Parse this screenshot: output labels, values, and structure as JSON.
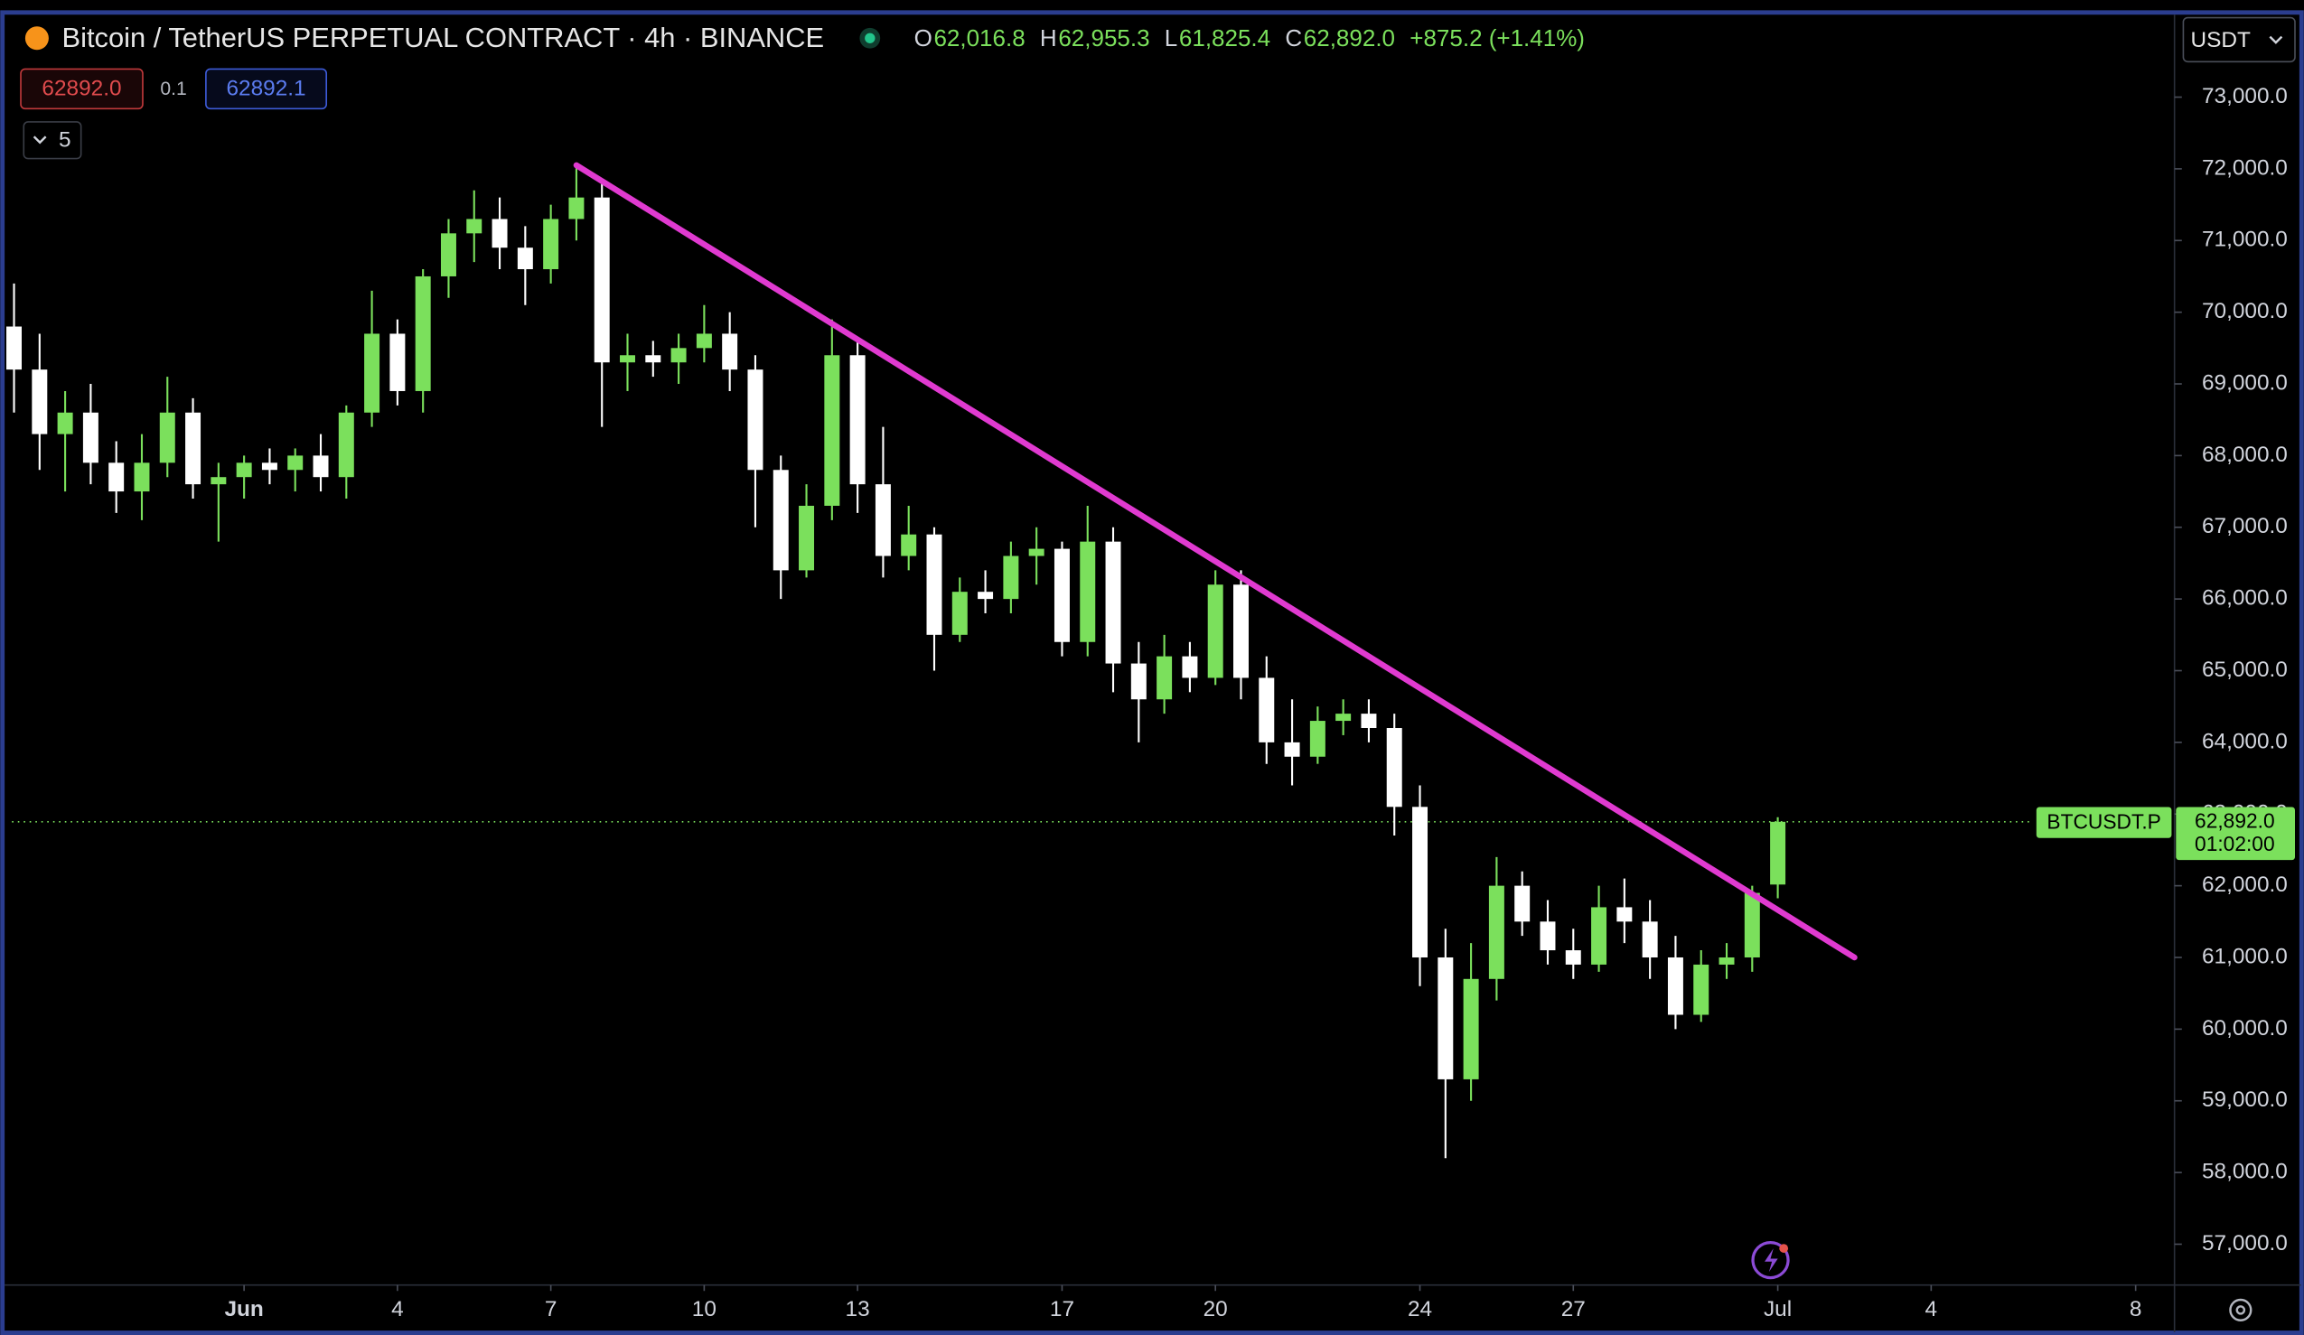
{
  "chart_data": {
    "type": "candlestick",
    "title": "Bitcoin / TetherUS PERPETUAL CONTRACT · 4h · BINANCE",
    "ohlc_legend": [
      {
        "key": "O",
        "value": "62,016.8"
      },
      {
        "key": "H",
        "value": "62,955.3"
      },
      {
        "key": "L",
        "value": "61,825.4"
      },
      {
        "key": "C",
        "value": "62,892.0"
      }
    ],
    "change": "+875.2 (+1.41%)",
    "toolbar": {
      "sell_price": "62892.0",
      "spread": "0.1",
      "buy_price": "62892.1",
      "indicator_count": 5,
      "currency": "USDT"
    },
    "up_color": "#7be05c",
    "down_color": "#ffffff",
    "x": [
      -3.5,
      -3,
      -2.5,
      -2,
      -1.5,
      -1,
      -0.5,
      0,
      0.5,
      1,
      1.5,
      2,
      2.5,
      3,
      3.5,
      4,
      4.5,
      5,
      5.5,
      6,
      6.5,
      7,
      7.5,
      8,
      8.5,
      9,
      9.5,
      10,
      10.5,
      11,
      11.5,
      12,
      12.5,
      13,
      13.5,
      14,
      14.5,
      15,
      15.5,
      16,
      16.5,
      17,
      17.5,
      18,
      18.5,
      19,
      19.5,
      20,
      20.5,
      21,
      21.5,
      22,
      22.5,
      23,
      23.5,
      24,
      24.5,
      25,
      25.5,
      26,
      26.5,
      27,
      27.5,
      28,
      28.5,
      29,
      29.5,
      30,
      30.5,
      31
    ],
    "open": [
      69800,
      69200,
      68300,
      68600,
      67900,
      67500,
      67900,
      68600,
      67600,
      67700,
      67900,
      67800,
      68000,
      67700,
      68600,
      69700,
      68900,
      70500,
      71100,
      71300,
      70900,
      70600,
      71300,
      71600,
      69300,
      69400,
      69300,
      69500,
      69700,
      69200,
      67800,
      66400,
      67300,
      69400,
      67600,
      66600,
      66900,
      65500,
      66100,
      66000,
      66600,
      66700,
      65400,
      66800,
      65100,
      64600,
      65200,
      64900,
      66200,
      64900,
      64000,
      63800,
      64300,
      64400,
      64200,
      63100,
      61000,
      59300,
      60700,
      62000,
      61500,
      61100,
      60900,
      61700,
      61500,
      61000,
      60200,
      60900,
      61000,
      62016.8
    ],
    "high": [
      70400,
      69700,
      68900,
      69000,
      68200,
      68300,
      69100,
      68800,
      67900,
      68000,
      68100,
      68100,
      68300,
      68700,
      70300,
      69900,
      70600,
      71300,
      71700,
      71600,
      71200,
      71500,
      72050,
      71800,
      69700,
      69600,
      69700,
      70100,
      70000,
      69400,
      68000,
      67600,
      69900,
      69600,
      68400,
      67300,
      67000,
      66300,
      66400,
      66800,
      67000,
      66800,
      67300,
      67000,
      65400,
      65500,
      65400,
      66400,
      66400,
      65200,
      64600,
      64500,
      64600,
      64600,
      64400,
      63400,
      61400,
      61200,
      62400,
      62200,
      61800,
      61400,
      62000,
      62100,
      61800,
      61300,
      61100,
      61200,
      62000,
      62955.3
    ],
    "low": [
      68600,
      67800,
      67500,
      67600,
      67200,
      67100,
      67700,
      67400,
      66800,
      67400,
      67600,
      67500,
      67500,
      67400,
      68400,
      68700,
      68600,
      70200,
      70700,
      70600,
      70100,
      70400,
      71000,
      68400,
      68900,
      69100,
      69000,
      69300,
      68900,
      67000,
      66000,
      66300,
      67100,
      67200,
      66300,
      66400,
      65000,
      65400,
      65800,
      65800,
      66200,
      65200,
      65200,
      64700,
      64000,
      64400,
      64700,
      64800,
      64600,
      63700,
      63400,
      63700,
      64100,
      64000,
      62700,
      60600,
      58200,
      59000,
      60400,
      61300,
      60900,
      60700,
      60800,
      61200,
      60700,
      60000,
      60100,
      60700,
      60800,
      61825.4
    ],
    "close": [
      69200,
      68300,
      68600,
      67900,
      67500,
      67900,
      68600,
      67600,
      67700,
      67900,
      67800,
      68000,
      67700,
      68600,
      69700,
      68900,
      70500,
      71100,
      71300,
      70900,
      70600,
      71300,
      71600,
      69300,
      69400,
      69300,
      69500,
      69700,
      69200,
      67800,
      66400,
      67300,
      69400,
      67600,
      66600,
      66900,
      65500,
      66100,
      66000,
      66600,
      66700,
      65400,
      66800,
      65100,
      64600,
      65200,
      64900,
      66200,
      64900,
      64000,
      63800,
      64300,
      64400,
      64200,
      63100,
      61000,
      59300,
      60700,
      62000,
      61500,
      61100,
      60900,
      61700,
      61500,
      61000,
      60200,
      60900,
      61000,
      61900,
      62892
    ],
    "xlim": [
      -3.77,
      38.76
    ],
    "ylim": [
      56430,
      74150
    ],
    "xticks": [
      {
        "value": 1,
        "label": "Jun"
      },
      4,
      7,
      10,
      13,
      17,
      20,
      24,
      27,
      {
        "value": 31,
        "label": "Jul"
      },
      {
        "value": 34,
        "label": "4"
      },
      {
        "value": 38,
        "label": "8"
      }
    ],
    "yticks": [
      {
        "value": 57000,
        "label": "57,000.0"
      },
      {
        "value": 58000,
        "label": "58,000.0"
      },
      {
        "value": 59000,
        "label": "59,000.0"
      },
      {
        "value": 60000,
        "label": "60,000.0"
      },
      {
        "value": 61000,
        "label": "61,000.0"
      },
      {
        "value": 62000,
        "label": "62,000.0"
      },
      {
        "value": 63000,
        "label": "63,000.0"
      },
      {
        "value": 64000,
        "label": "64,000.0"
      },
      {
        "value": 65000,
        "label": "65,000.0"
      },
      {
        "value": 66000,
        "label": "66,000.0"
      },
      {
        "value": 67000,
        "label": "67,000.0"
      },
      {
        "value": 68000,
        "label": "68,000.0"
      },
      {
        "value": 69000,
        "label": "69,000.0"
      },
      {
        "value": 70000,
        "label": "70,000.0"
      },
      {
        "value": 71000,
        "label": "71,000.0"
      },
      {
        "value": 72000,
        "label": "72,000.0"
      },
      {
        "value": 73000,
        "label": "73,000.0"
      }
    ],
    "last_price": {
      "value": 62892,
      "label": "62,892.0",
      "symbol": "BTCUSDT.P",
      "countdown": "01:02:00",
      "color": "#7be05c"
    },
    "trendline": {
      "x": [
        7.5,
        32.5
      ],
      "y": [
        72050,
        61000
      ],
      "color": "#e03ad0"
    }
  }
}
